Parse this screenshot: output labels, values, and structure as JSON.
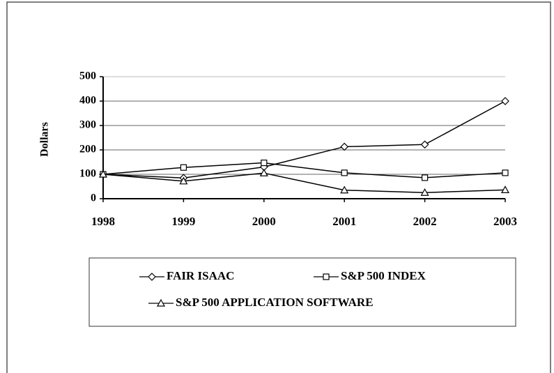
{
  "chart_data": {
    "type": "line",
    "y_label": "Dollars",
    "categories": [
      "1998",
      "1999",
      "2000",
      "2001",
      "2002",
      "2003"
    ],
    "series": [
      {
        "name": "FAIR ISAAC",
        "color": "#000000",
        "marker": "diamond",
        "values": [
          100,
          85,
          130,
          213,
          222,
          400
        ]
      },
      {
        "name": "S&P 500 INDEX",
        "color": "#000000",
        "marker": "square",
        "values": [
          100,
          128,
          147,
          106,
          86,
          106
        ]
      },
      {
        "name": "S&P 500 APPLICATION SOFTWARE",
        "color": "#000000",
        "marker": "triangle",
        "values": [
          100,
          72,
          105,
          35,
          25,
          36
        ]
      }
    ],
    "ylim": [
      0,
      500
    ],
    "yticks": [
      0,
      100,
      200,
      300,
      400,
      500
    ],
    "grid": true
  }
}
